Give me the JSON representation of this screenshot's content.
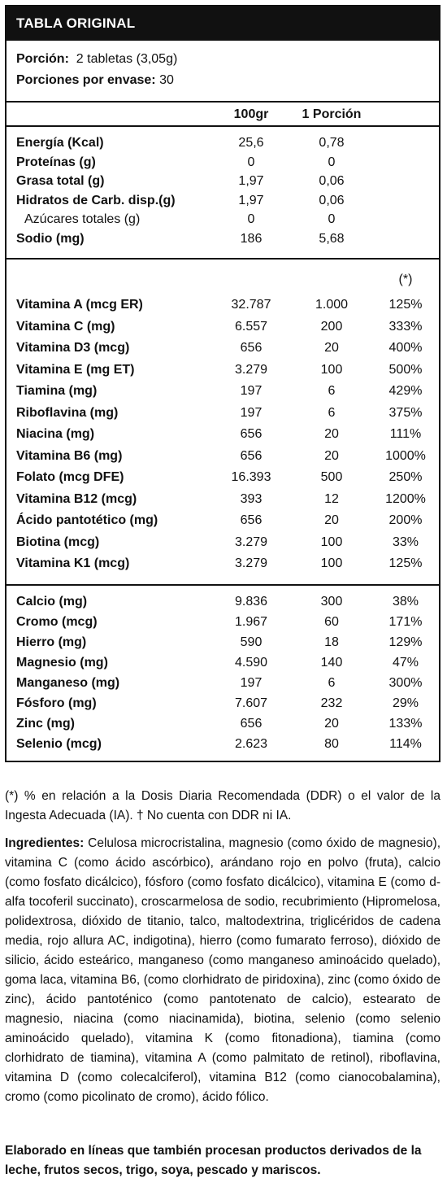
{
  "table": {
    "title": "TABLA ORIGINAL",
    "portion_label": "Porción:",
    "portion_value": "2 tabletas (3,05g)",
    "servings_label": "Porciones por envase:",
    "servings_value": "30",
    "col_100gr": "100gr",
    "col_portion": "1 Porción",
    "ddr_marker": "(*)",
    "macros": [
      {
        "name": "Energía (Kcal)",
        "v100": "25,6",
        "vpor": "0,78"
      },
      {
        "name": "Proteínas (g)",
        "v100": "0",
        "vpor": "0"
      },
      {
        "name": "Grasa total (g)",
        "v100": "1,97",
        "vpor": "0,06"
      },
      {
        "name": "Hidratos de Carb. disp.(g)",
        "v100": "1,97",
        "vpor": "0,06"
      },
      {
        "name": "Azúcares totales (g)",
        "v100": "0",
        "vpor": "0"
      },
      {
        "name": "Sodio (mg)",
        "v100": "186",
        "vpor": "5,68"
      }
    ],
    "vitamins": [
      {
        "name": "Vitamina A (mcg ER)",
        "v100": "32.787",
        "vpor": "1.000",
        "pct": "125%"
      },
      {
        "name": "Vitamina C (mg)",
        "v100": "6.557",
        "vpor": "200",
        "pct": "333%"
      },
      {
        "name": "Vitamina D3 (mcg)",
        "v100": "656",
        "vpor": "20",
        "pct": "400%"
      },
      {
        "name": "Vitamina E (mg ET)",
        "v100": "3.279",
        "vpor": "100",
        "pct": "500%"
      },
      {
        "name": "Tiamina (mg)",
        "v100": "197",
        "vpor": "6",
        "pct": "429%"
      },
      {
        "name": "Riboflavina (mg)",
        "v100": "197",
        "vpor": "6",
        "pct": "375%"
      },
      {
        "name": "Niacina (mg)",
        "v100": "656",
        "vpor": "20",
        "pct": "111%"
      },
      {
        "name": "Vitamina B6 (mg)",
        "v100": "656",
        "vpor": "20",
        "pct": "1000%"
      },
      {
        "name": "Folato (mcg DFE)",
        "v100": "16.393",
        "vpor": "500",
        "pct": "250%"
      },
      {
        "name": "Vitamina B12 (mcg)",
        "v100": "393",
        "vpor": "12",
        "pct": "1200%"
      },
      {
        "name": "Ácido pantotético (mg)",
        "v100": "656",
        "vpor": "20",
        "pct": "200%"
      },
      {
        "name": "Biotina (mcg)",
        "v100": "3.279",
        "vpor": "100",
        "pct": "33%"
      },
      {
        "name": "Vitamina K1 (mcg)",
        "v100": "3.279",
        "vpor": "100",
        "pct": "125%"
      }
    ],
    "minerals": [
      {
        "name": "Calcio (mg)",
        "v100": "9.836",
        "vpor": "300",
        "pct": "38%"
      },
      {
        "name": "Cromo (mcg)",
        "v100": "1.967",
        "vpor": "60",
        "pct": "171%"
      },
      {
        "name": "Hierro (mg)",
        "v100": "590",
        "vpor": "18",
        "pct": "129%"
      },
      {
        "name": "Magnesio (mg)",
        "v100": "4.590",
        "vpor": "140",
        "pct": "47%"
      },
      {
        "name": "Manganeso (mg)",
        "v100": "197",
        "vpor": "6",
        "pct": "300%"
      },
      {
        "name": "Fósforo (mg)",
        "v100": "7.607",
        "vpor": "232",
        "pct": "29%"
      },
      {
        "name": "Zinc (mg)",
        "v100": "656",
        "vpor": "20",
        "pct": "133%"
      },
      {
        "name": "Selenio (mcg)",
        "v100": "2.623",
        "vpor": "80",
        "pct": "114%"
      }
    ]
  },
  "footnote": "(*) % en relación a la Dosis Diaria Recomendada (DDR) o el valor de la Ingesta Adecuada (IA). † No cuenta con DDR ni IA.",
  "ingredients_label": "Ingredientes:",
  "ingredients_text": "Celulosa microcristalina, magnesio (como óxido de magnesio), vitamina C (como ácido ascórbico), arándano rojo en polvo (fruta), calcio (como fosfato dicálcico), fósforo (como fosfato dicálcico), vitamina E (como d-alfa tocoferil succinato), croscarmelosa de sodio, recubrimiento (Hipromelosa, polidextrosa, dióxido de titanio, talco, maltodextrina, triglicéridos de cadena media, rojo allura AC, indigotina), hierro (como fumarato ferroso), dióxido de silicio, ácido esteárico, manganeso (como manganeso aminoácido quelado), goma laca, vitamina B6, (como clorhidrato de piridoxina), zinc (como óxido de zinc), ácido pantoténico (como pantotenato de calcio), estearato de magnesio, niacina (como niacinamida), biotina, selenio (como selenio aminoácido quelado), vitamina K (como fitonadiona), tiamina (como clorhidrato de tiamina), vitamina A (como palmitato de retinol), riboflavina, vitamina D (como colecalciferol), vitamina B12 (como cianocobalamina), cromo (como picolinato de cromo), ácido fólico.",
  "allergen_text": "Elaborado en líneas que también procesan productos derivados de la leche, frutos secos, trigo, soya, pescado y mariscos."
}
